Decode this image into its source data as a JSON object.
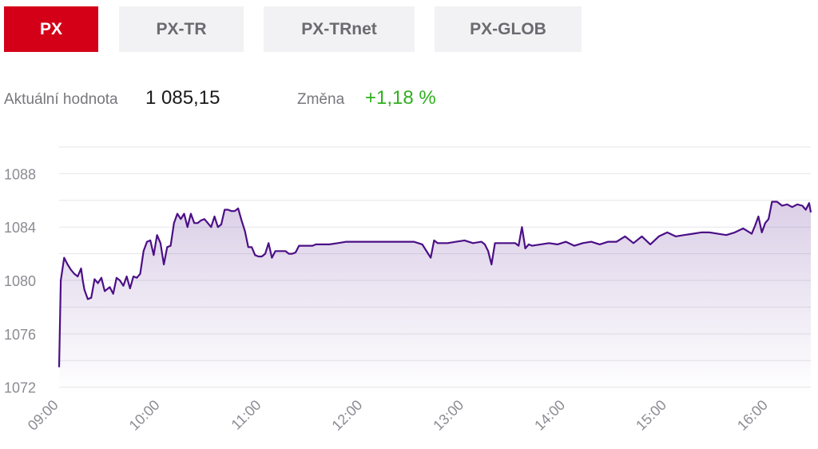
{
  "tabs": [
    {
      "label": "PX",
      "active": true
    },
    {
      "label": "PX-TR",
      "active": false
    },
    {
      "label": "PX-TRnet",
      "active": false
    },
    {
      "label": "PX-GLOB",
      "active": false
    }
  ],
  "stats": {
    "value_label": "Aktuální hodnota",
    "value": "1 085,15",
    "change_label": "Změna",
    "change": "+1,18 %"
  },
  "colors": {
    "accent": "#d40018",
    "line": "#4b0f86",
    "positive": "#2fb01e",
    "grid": "#e6e6ea",
    "axis_text": "#8b8b93"
  },
  "chart_data": {
    "type": "line",
    "title": "",
    "xlabel": "",
    "ylabel": "",
    "x_ticks": [
      "09:00",
      "10:00",
      "11:00",
      "12:00",
      "13:00",
      "14:00",
      "15:00",
      "16:00"
    ],
    "y_ticks": [
      1072,
      1076,
      1080,
      1084,
      1088
    ],
    "xlim": [
      "09:00",
      "16:25"
    ],
    "ylim": [
      1071.5,
      1090
    ],
    "grid": true,
    "area_fill": true,
    "series": [
      {
        "x": [
          "09:00",
          "09:01",
          "09:03",
          "09:05",
          "09:07",
          "09:09",
          "09:11",
          "09:13",
          "09:14",
          "09:15",
          "09:17",
          "09:19",
          "09:21",
          "09:23",
          "09:25",
          "09:27",
          "09:30",
          "09:32",
          "09:34",
          "09:36",
          "09:38",
          "09:40",
          "09:42",
          "09:44",
          "09:46",
          "09:48",
          "09:50",
          "09:52",
          "09:54",
          "09:56",
          "09:58",
          "10:00",
          "10:02",
          "10:04",
          "10:06",
          "10:08",
          "10:10",
          "10:12",
          "10:14",
          "10:16",
          "10:18",
          "10:20",
          "10:22",
          "10:24",
          "10:26",
          "10:28",
          "10:30",
          "10:32",
          "10:34",
          "10:36",
          "10:38",
          "10:40",
          "10:42",
          "10:44",
          "10:46",
          "10:48",
          "10:50",
          "10:52",
          "10:54",
          "10:56",
          "10:58",
          "11:00",
          "11:02",
          "11:04",
          "11:06",
          "11:08",
          "11:10",
          "11:12",
          "11:14",
          "11:16",
          "11:18",
          "11:20",
          "11:22",
          "11:24",
          "11:26",
          "11:28",
          "11:30",
          "11:32",
          "11:34",
          "11:36",
          "11:38",
          "11:40",
          "11:45",
          "11:50",
          "11:55",
          "12:00",
          "12:10",
          "12:20",
          "12:30",
          "12:35",
          "12:40",
          "12:42",
          "12:44",
          "12:46",
          "12:50",
          "12:55",
          "13:00",
          "13:05",
          "13:10",
          "13:12",
          "13:14",
          "13:16",
          "13:18",
          "13:20",
          "13:22",
          "13:24",
          "13:26",
          "13:28",
          "13:30",
          "13:32",
          "13:34",
          "13:36",
          "13:38",
          "13:40",
          "13:45",
          "13:50",
          "13:55",
          "14:00",
          "14:05",
          "14:10",
          "14:15",
          "14:20",
          "14:25",
          "14:30",
          "14:35",
          "14:40",
          "14:45",
          "14:50",
          "14:55",
          "15:00",
          "15:05",
          "15:10",
          "15:15",
          "15:20",
          "15:25",
          "15:30",
          "15:35",
          "15:40",
          "15:45",
          "15:50",
          "15:52",
          "15:54",
          "15:56",
          "15:58",
          "16:00",
          "16:02",
          "16:05",
          "16:08",
          "16:11",
          "16:14",
          "16:17",
          "16:20",
          "16:22",
          "16:24",
          "16:25"
        ],
        "y": [
          1073.5,
          1080.0,
          1081.7,
          1081.2,
          1080.8,
          1080.5,
          1080.3,
          1080.9,
          1080.0,
          1079.3,
          1078.6,
          1078.7,
          1080.1,
          1079.8,
          1080.2,
          1079.2,
          1079.5,
          1079.0,
          1080.2,
          1080.0,
          1079.6,
          1080.3,
          1079.4,
          1080.3,
          1080.2,
          1080.5,
          1082.2,
          1082.9,
          1083.0,
          1081.9,
          1083.4,
          1082.8,
          1081.2,
          1082.5,
          1082.6,
          1084.3,
          1085.0,
          1084.6,
          1085.0,
          1084.0,
          1085.0,
          1084.3,
          1084.3,
          1084.5,
          1084.6,
          1084.3,
          1084.0,
          1084.8,
          1084.0,
          1084.2,
          1085.3,
          1085.3,
          1085.2,
          1085.2,
          1085.4,
          1084.5,
          1083.7,
          1082.5,
          1082.5,
          1081.9,
          1081.8,
          1081.8,
          1082.0,
          1082.8,
          1081.7,
          1082.2,
          1082.2,
          1082.2,
          1082.2,
          1082.0,
          1082.0,
          1082.1,
          1082.6,
          1082.6,
          1082.6,
          1082.6,
          1082.6,
          1082.7,
          1082.7,
          1082.7,
          1082.7,
          1082.7,
          1082.8,
          1082.9,
          1082.9,
          1082.9,
          1082.9,
          1082.9,
          1082.9,
          1082.7,
          1081.7,
          1083.0,
          1082.8,
          1082.8,
          1082.8,
          1082.9,
          1083.0,
          1082.8,
          1082.9,
          1082.7,
          1082.2,
          1081.2,
          1082.8,
          1082.8,
          1082.8,
          1082.8,
          1082.8,
          1082.8,
          1082.8,
          1082.6,
          1084.0,
          1082.4,
          1082.7,
          1082.6,
          1082.7,
          1082.8,
          1082.7,
          1082.9,
          1082.6,
          1082.8,
          1082.9,
          1082.7,
          1082.9,
          1082.9,
          1083.3,
          1082.8,
          1083.3,
          1082.7,
          1083.3,
          1083.6,
          1083.3,
          1083.4,
          1083.5,
          1083.6,
          1083.6,
          1083.5,
          1083.4,
          1083.6,
          1083.9,
          1083.5,
          1084.1,
          1084.8,
          1083.6,
          1084.3,
          1084.6,
          1085.9,
          1085.9,
          1085.6,
          1085.7,
          1085.5,
          1085.7,
          1085.6,
          1085.3,
          1085.8,
          1085.1
        ]
      }
    ]
  }
}
